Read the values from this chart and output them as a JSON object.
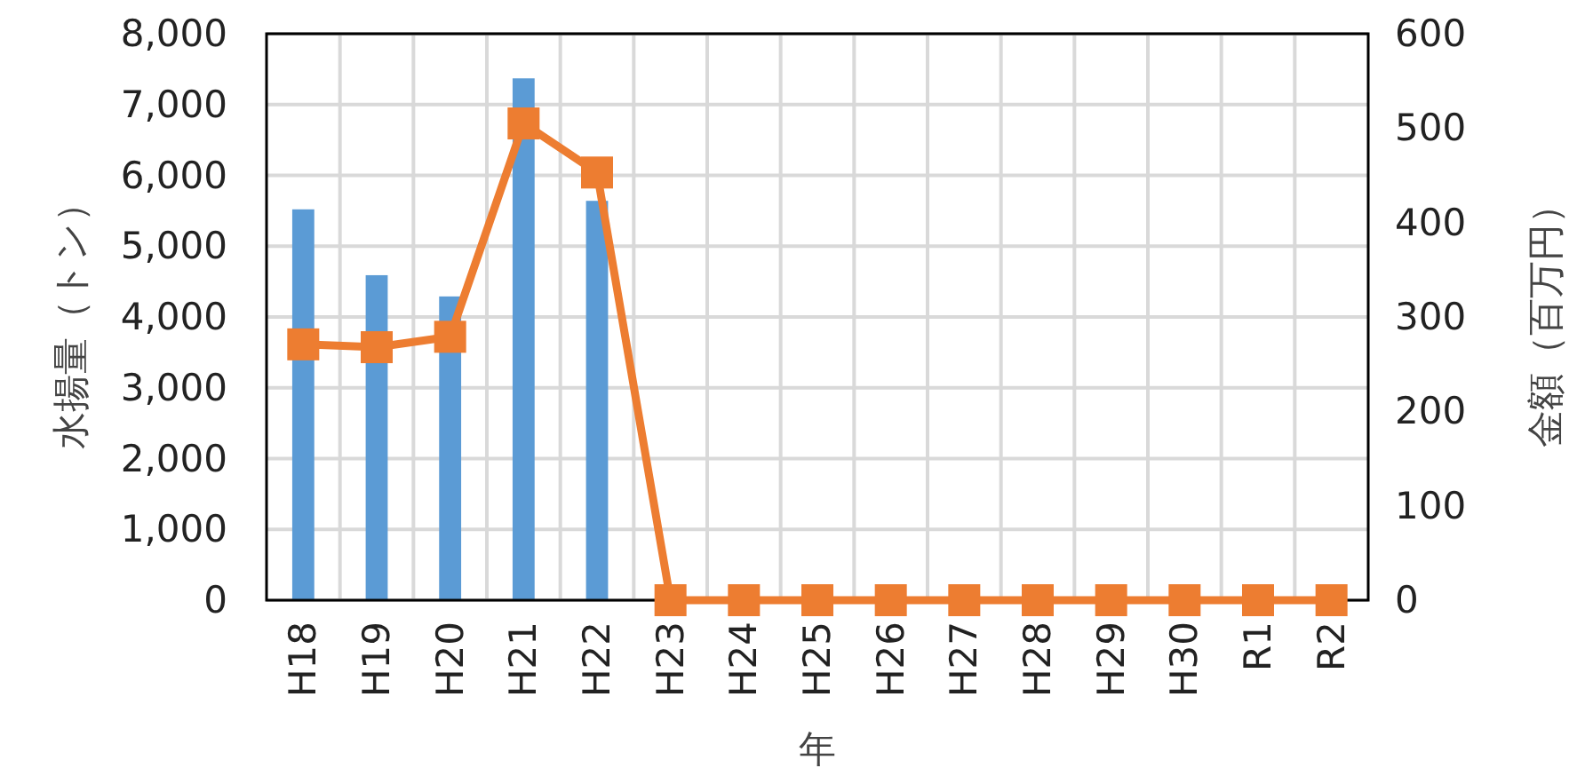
{
  "chart_data": {
    "type": "bar",
    "xlabel": "年",
    "ylabel": "水揚量（トン）",
    "y2label": "金額（百万円）",
    "categories": [
      "H18",
      "H19",
      "H20",
      "H21",
      "H22",
      "H23",
      "H24",
      "H25",
      "H26",
      "H27",
      "H28",
      "H29",
      "H30",
      "R1",
      "R2"
    ],
    "series": [
      {
        "color": "#5b9bd5",
        "values": [
          5520,
          4590,
          4290,
          7370,
          5640,
          0,
          0,
          0,
          0,
          0,
          0,
          0,
          0,
          0,
          0
        ]
      },
      {
        "type": "line",
        "axis": "y2",
        "color": "#ed7d31",
        "marker": "square",
        "values": [
          271,
          268,
          279,
          505,
          453,
          0,
          0,
          0,
          0,
          0,
          0,
          0,
          0,
          0,
          0
        ]
      }
    ],
    "ylim": [
      0,
      8000
    ],
    "yticks": [
      {
        "value": 0,
        "label": "0"
      },
      {
        "value": 1000,
        "label": "1,000"
      },
      {
        "value": 2000,
        "label": "2,000"
      },
      {
        "value": 3000,
        "label": "3,000"
      },
      {
        "value": 4000,
        "label": "4,000"
      },
      {
        "value": 5000,
        "label": "5,000"
      },
      {
        "value": 6000,
        "label": "6,000"
      },
      {
        "value": 7000,
        "label": "7,000"
      },
      {
        "value": 8000,
        "label": "8,000"
      }
    ],
    "y2lim": [
      0,
      600
    ],
    "y2ticks": [
      0,
      100,
      200,
      300,
      400,
      500,
      600
    ],
    "grid": true
  }
}
